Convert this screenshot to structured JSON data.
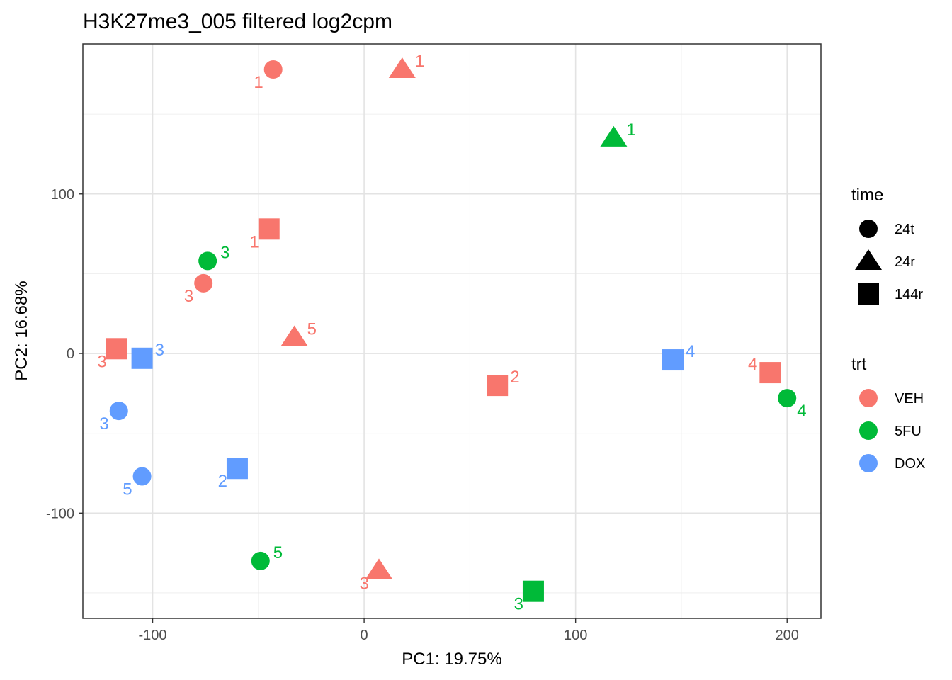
{
  "chart_data": {
    "type": "scatter",
    "title": "H3K27me3_005 filtered log2cpm",
    "xlabel": "PC1: 19.75%",
    "ylabel": "PC2: 16.68%",
    "xlim": [
      -133,
      216
    ],
    "ylim": [
      -166,
      194
    ],
    "xticks": [
      -100,
      0,
      100,
      200
    ],
    "xtick_labels": [
      "-100",
      "0",
      "100",
      "200"
    ],
    "yticks": [
      -100,
      0,
      100
    ],
    "ytick_labels": [
      "-100",
      "0",
      "100"
    ],
    "grid": true,
    "legend_position": "right",
    "colors": {
      "VEH": "#F8766D",
      "5FU": "#00BA38",
      "DOX": "#619CFF"
    },
    "legend": {
      "time": {
        "title": "time",
        "items": [
          {
            "label": "24t",
            "shape": "circle"
          },
          {
            "label": "24r",
            "shape": "triangle"
          },
          {
            "label": "144r",
            "shape": "square"
          }
        ]
      },
      "trt": {
        "title": "trt",
        "items": [
          {
            "label": "VEH",
            "color": "#F8766D"
          },
          {
            "label": "5FU",
            "color": "#00BA38"
          },
          {
            "label": "DOX",
            "color": "#619CFF"
          }
        ]
      }
    },
    "points": [
      {
        "x": -43,
        "y": 178,
        "time": "24t",
        "trt": "VEH",
        "label": "1",
        "label_pos": "bl"
      },
      {
        "x": 18,
        "y": 178,
        "time": "24r",
        "trt": "VEH",
        "label": "1",
        "label_pos": "tr"
      },
      {
        "x": 118,
        "y": 135,
        "time": "24r",
        "trt": "5FU",
        "label": "1",
        "label_pos": "tr"
      },
      {
        "x": -45,
        "y": 78,
        "time": "144r",
        "trt": "VEH",
        "label": "1",
        "label_pos": "bl"
      },
      {
        "x": -74,
        "y": 58,
        "time": "24t",
        "trt": "5FU",
        "label": "3",
        "label_pos": "tr"
      },
      {
        "x": -76,
        "y": 44,
        "time": "24t",
        "trt": "VEH",
        "label": "3",
        "label_pos": "bl"
      },
      {
        "x": -33,
        "y": 10,
        "time": "24r",
        "trt": "VEH",
        "label": "5",
        "label_pos": "tr"
      },
      {
        "x": -117,
        "y": 3,
        "time": "144r",
        "trt": "VEH",
        "label": "3",
        "label_pos": "bl"
      },
      {
        "x": -105,
        "y": -3,
        "time": "144r",
        "trt": "DOX",
        "label": "3",
        "label_pos": "tr"
      },
      {
        "x": 146,
        "y": -4,
        "time": "144r",
        "trt": "DOX",
        "label": "4",
        "label_pos": "tr"
      },
      {
        "x": 192,
        "y": -12,
        "time": "144r",
        "trt": "VEH",
        "label": "4",
        "label_pos": "tl"
      },
      {
        "x": 63,
        "y": -20,
        "time": "144r",
        "trt": "VEH",
        "label": "2",
        "label_pos": "tr"
      },
      {
        "x": 200,
        "y": -28,
        "time": "24t",
        "trt": "5FU",
        "label": "4",
        "label_pos": "br"
      },
      {
        "x": -116,
        "y": -36,
        "time": "24t",
        "trt": "DOX",
        "label": "3",
        "label_pos": "bl"
      },
      {
        "x": -60,
        "y": -72,
        "time": "144r",
        "trt": "DOX",
        "label": "2",
        "label_pos": "bl"
      },
      {
        "x": -105,
        "y": -77,
        "time": "24t",
        "trt": "DOX",
        "label": "5",
        "label_pos": "bl"
      },
      {
        "x": -49,
        "y": -130,
        "time": "24t",
        "trt": "5FU",
        "label": "5",
        "label_pos": "tr"
      },
      {
        "x": 7,
        "y": -136,
        "time": "24r",
        "trt": "VEH",
        "label": "3",
        "label_pos": "bl"
      },
      {
        "x": 80,
        "y": -149,
        "time": "144r",
        "trt": "5FU",
        "label": "3",
        "label_pos": "bl"
      }
    ]
  }
}
